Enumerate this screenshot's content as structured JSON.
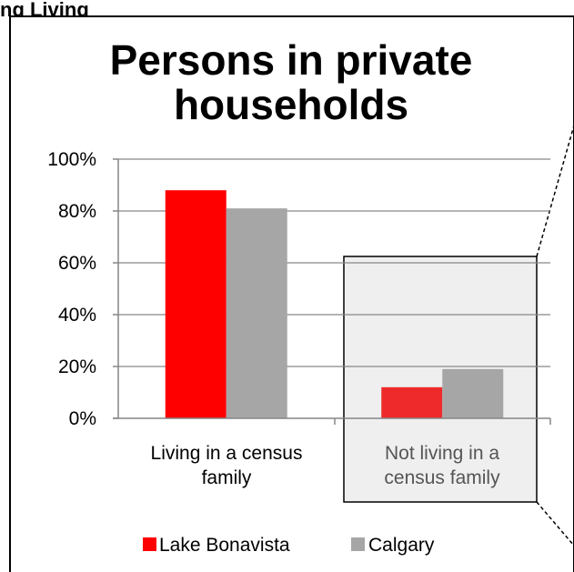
{
  "top_fragment": "ng Living",
  "chart_data": {
    "type": "bar",
    "title": "Persons in private households",
    "title_lines": [
      "Persons in private",
      "households"
    ],
    "categories": [
      "Living in a census family",
      "Not living in a census family"
    ],
    "category_lines": [
      [
        "Living in a census",
        "family"
      ],
      [
        "Not living in a",
        "census family"
      ]
    ],
    "series": [
      {
        "name": "Lake Bonavista",
        "values": [
          88,
          12
        ],
        "color": "#ff0000"
      },
      {
        "name": "Calgary",
        "values": [
          81,
          19
        ],
        "color": "#a6a6a6"
      }
    ],
    "highlight_category_index": 1,
    "highlight_color": "#efefef",
    "ylim": [
      0,
      100
    ],
    "yticks": [
      "0%",
      "20%",
      "40%",
      "60%",
      "80%",
      "100%"
    ],
    "grid": true,
    "legend_position": "bottom"
  }
}
